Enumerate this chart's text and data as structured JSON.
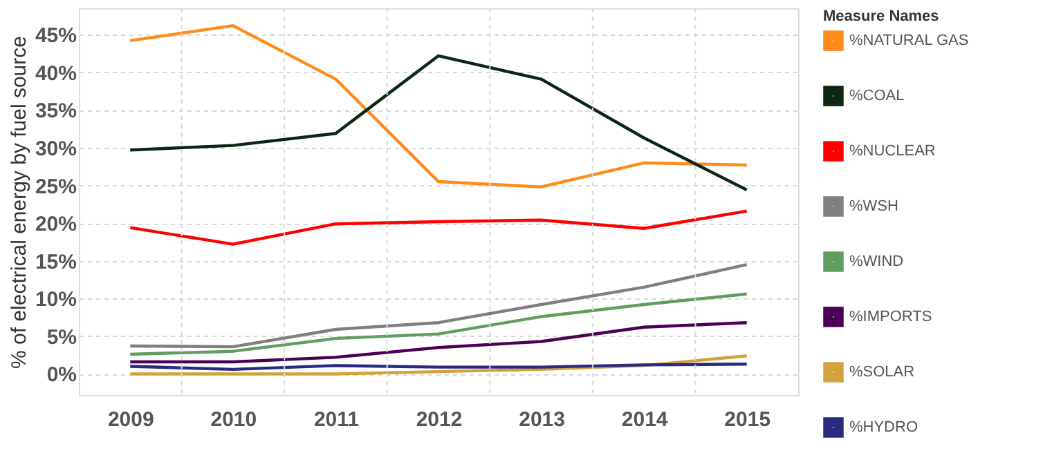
{
  "chart_data": {
    "type": "line",
    "ylabel": "% of electrical energy by fuel source",
    "legend_title": "Measure Names",
    "categories": [
      "2009",
      "2010",
      "2011",
      "2012",
      "2013",
      "2014",
      "2015"
    ],
    "ylim": [
      -2.8,
      48.5
    ],
    "yticks": [
      {
        "value": 0,
        "label": "0%"
      },
      {
        "value": 5,
        "label": "5%"
      },
      {
        "value": 10,
        "label": "10%"
      },
      {
        "value": 15,
        "label": "15%"
      },
      {
        "value": 20,
        "label": "20%"
      },
      {
        "value": 25,
        "label": "25%"
      },
      {
        "value": 30,
        "label": "30%"
      },
      {
        "value": 35,
        "label": "35%"
      },
      {
        "value": 40,
        "label": "40%"
      },
      {
        "value": 45,
        "label": "45%"
      }
    ],
    "grid": true,
    "legend": "right",
    "line_style": "solid",
    "marker": "none",
    "series": [
      {
        "name": "%NATURAL GAS",
        "color": "#ff8c1a",
        "values": [
          44.2,
          46.2,
          39.1,
          25.5,
          24.8,
          28.0,
          27.7
        ]
      },
      {
        "name": "%COAL",
        "color": "#0b2612",
        "values": [
          29.7,
          30.3,
          31.9,
          42.2,
          39.1,
          31.3,
          24.4
        ]
      },
      {
        "name": "%NUCLEAR",
        "color": "#ff0000",
        "values": [
          19.4,
          17.2,
          19.9,
          20.2,
          20.4,
          19.3,
          21.6
        ]
      },
      {
        "name": "%WSH",
        "color": "#7f7f7f",
        "values": [
          3.7,
          3.6,
          5.9,
          6.8,
          9.2,
          11.5,
          14.5
        ]
      },
      {
        "name": "%WIND",
        "color": "#5f9e5f",
        "values": [
          2.6,
          3.0,
          4.7,
          5.3,
          7.6,
          9.2,
          10.6
        ]
      },
      {
        "name": "%IMPORTS",
        "color": "#4b0055",
        "values": [
          1.6,
          1.6,
          2.2,
          3.5,
          4.3,
          6.2,
          6.8
        ]
      },
      {
        "name": "%SOLAR",
        "color": "#d4a23c",
        "values": [
          0,
          0,
          0,
          0.3,
          0.6,
          1.1,
          2.4
        ]
      },
      {
        "name": "%HYDRO",
        "color": "#2a2a80",
        "values": [
          1.0,
          0.6,
          1.1,
          0.9,
          0.9,
          1.2,
          1.3
        ]
      }
    ]
  }
}
